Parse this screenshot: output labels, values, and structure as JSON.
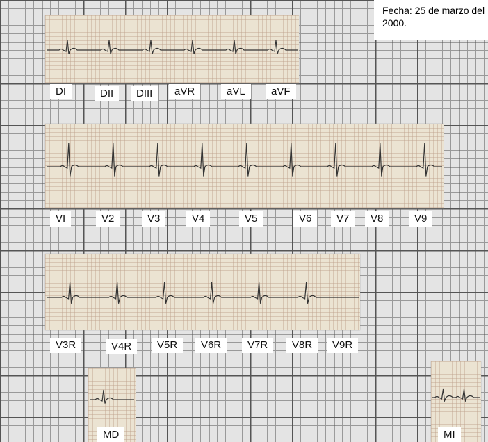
{
  "note": "Fecha: 25 de marzo del 2000.",
  "rows": [
    {
      "labels": [
        "DI",
        "DII",
        "DIII",
        "aVR",
        "aVL",
        "aVF"
      ]
    },
    {
      "labels": [
        "VI",
        "V2",
        "V3",
        "V4",
        "V5",
        "V6",
        "V7",
        "V8",
        "V9"
      ]
    },
    {
      "labels": [
        "V3R",
        "V4R",
        "V5R",
        "V6R",
        "V7R",
        "V8R",
        "V9R"
      ]
    }
  ],
  "extra": [
    "MD",
    "MI"
  ]
}
